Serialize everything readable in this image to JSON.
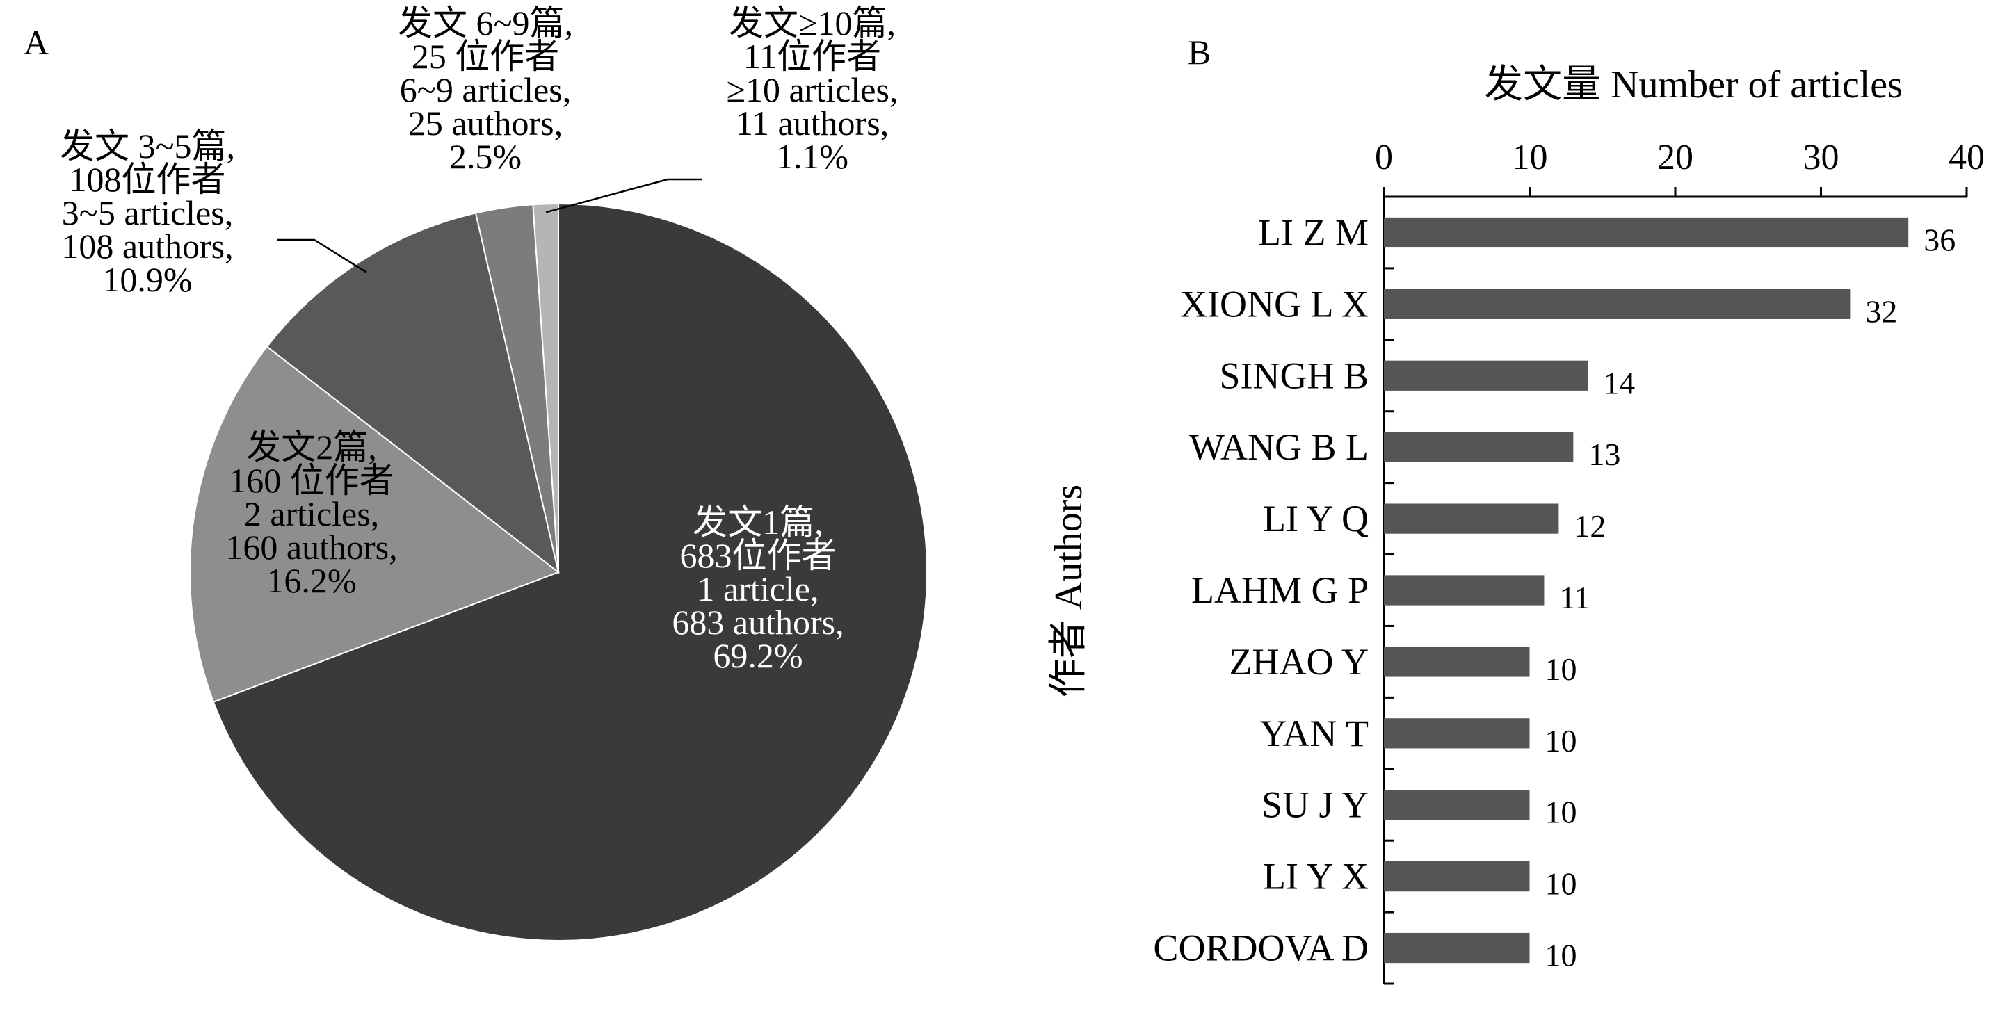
{
  "chart_data": [
    {
      "type": "pie",
      "panel_label": "A",
      "slices": [
        {
          "value": 69.2,
          "color": "#3a3a3a",
          "label_color": "#ffffff",
          "lines": [
            "发文1篇,",
            "683位作者",
            "1 article,",
            "683 authors,",
            "69.2%"
          ]
        },
        {
          "value": 16.2,
          "color": "#8e8e8e",
          "label_color": "#000000",
          "lines": [
            "发文2篇,",
            "160 位作者",
            "2 articles,",
            "160 authors,",
            "16.2%"
          ]
        },
        {
          "value": 10.9,
          "color": "#595959",
          "label_color": "#000000",
          "lines": [
            "发文 3~5篇,",
            "108位作者",
            "3~5 articles,",
            "108 authors,",
            "10.9%"
          ]
        },
        {
          "value": 2.5,
          "color": "#7c7c7c",
          "label_color": "#000000",
          "lines": [
            "发文 6~9篇,",
            "25 位作者",
            "6~9 articles,",
            "25 authors,",
            "2.5%"
          ]
        },
        {
          "value": 1.1,
          "color": "#b5b5b5",
          "label_color": "#000000",
          "lines": [
            "发文≥10篇,",
            "11位作者",
            "≥10 articles,",
            "11 authors,",
            "1.1%"
          ]
        }
      ]
    },
    {
      "type": "bar",
      "orientation": "horizontal",
      "panel_label": "B",
      "title": "发文量 Number of  articles",
      "ylabel": "作者 Authors",
      "xlim": [
        0,
        40
      ],
      "xticks": [
        "0",
        "10",
        "20",
        "30",
        "40"
      ],
      "bar_color": "#555555",
      "categories": [
        "LI Z M",
        "XIONG L X",
        "SINGH B",
        "WANG B L",
        "LI Y Q",
        "LAHM G P",
        "ZHAO Y",
        "YAN T",
        "SU J Y",
        "LI Y X",
        "CORDOVA D"
      ],
      "values": [
        36,
        32,
        14,
        13,
        12,
        11,
        10,
        10,
        10,
        10,
        10
      ],
      "value_labels": [
        "36",
        "32",
        "14",
        "13",
        "12",
        "11",
        "10",
        "10",
        "10",
        "10",
        "10"
      ]
    }
  ]
}
